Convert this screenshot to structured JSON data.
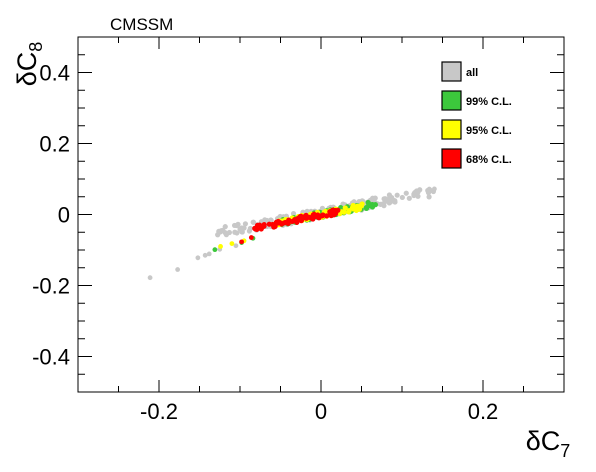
{
  "chart_data": {
    "type": "scatter",
    "title": "CMSSM",
    "xlabel": {
      "symbol": "δC",
      "subscript": "7"
    },
    "ylabel": {
      "symbol": "δC",
      "subscript": "8"
    },
    "xlim": [
      -0.3,
      0.3
    ],
    "ylim": [
      -0.5,
      0.5
    ],
    "x_ticks": [
      -0.2,
      0,
      0.2
    ],
    "x_tick_labels": [
      "-0.2",
      "0",
      "0.2"
    ],
    "y_ticks": [
      -0.4,
      -0.2,
      0,
      0.2,
      0.4
    ],
    "y_tick_labels": [
      "-0.4",
      "-0.2",
      "0",
      "0.2",
      "0.4"
    ],
    "grid": false,
    "legend_position": "top-right",
    "series": [
      {
        "name": "all",
        "color": "#c8c8c8",
        "band": {
          "x_start": -0.13,
          "x_end": 0.14,
          "slope": 0.44,
          "offset": 0.004,
          "width": 0.014
        },
        "points": [
          [
            -0.211,
            -0.178
          ],
          [
            -0.177,
            -0.155
          ],
          [
            -0.152,
            -0.122
          ],
          [
            -0.143,
            -0.115
          ],
          [
            -0.138,
            -0.111
          ],
          [
            -0.125,
            -0.098
          ],
          [
            -0.105,
            -0.088
          ],
          [
            0.12,
            0.063
          ],
          [
            0.14,
            0.072
          ]
        ]
      },
      {
        "name": "99% C.L.",
        "color": "#3cc83c",
        "band": {
          "x_start": -0.05,
          "x_end": 0.068,
          "slope": 0.44,
          "offset": 0.0,
          "width": 0.009
        },
        "points": [
          [
            -0.131,
            -0.099
          ],
          [
            -0.098,
            -0.079
          ],
          [
            -0.084,
            -0.067
          ]
        ]
      },
      {
        "name": "95% C.L.",
        "color": "#ffff00",
        "band": {
          "x_start": -0.06,
          "x_end": 0.052,
          "slope": 0.44,
          "offset": 0.0,
          "width": 0.008
        },
        "points": [
          [
            -0.124,
            -0.09
          ],
          [
            -0.11,
            -0.082
          ],
          [
            -0.095,
            -0.074
          ]
        ]
      },
      {
        "name": "68% C.L.",
        "color": "#ff0000",
        "band": {
          "x_start": -0.082,
          "x_end": 0.024,
          "slope": 0.46,
          "offset": -0.001,
          "width": 0.008
        },
        "points": [
          [
            -0.098,
            -0.077
          ],
          [
            -0.086,
            -0.065
          ]
        ]
      }
    ]
  }
}
